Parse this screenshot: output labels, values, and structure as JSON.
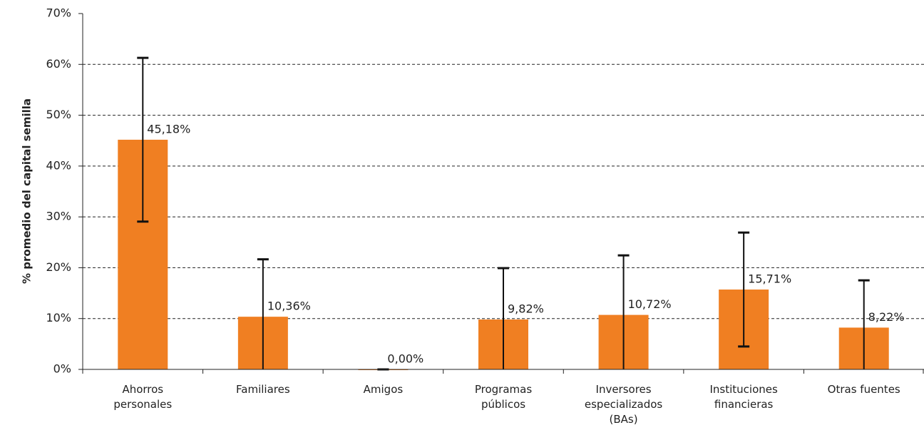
{
  "chart_data": {
    "type": "bar",
    "y_axis_label": "% promedio del capital semilla",
    "categories": [
      "Ahorros personales",
      "Familiares",
      "Amigos",
      "Programas públicos",
      "Inversores especializados (BAs)",
      "Instituciones financieras",
      "Otras fuentes"
    ],
    "values": [
      45.18,
      10.36,
      0,
      9.82,
      10.72,
      15.71,
      8.22
    ],
    "value_labels": [
      "45,18%",
      "10,36%",
      "0,00%",
      "9,82%",
      "10,72%",
      "15,71%",
      "8,22%"
    ],
    "errors": [
      16.1,
      11.3,
      0,
      10.1,
      11.7,
      11.2,
      9.3
    ],
    "color": "#f07f22",
    "ylim": [
      0,
      70
    ],
    "yticks": [
      {
        "value": 0,
        "label": "0%"
      },
      {
        "value": 10,
        "label": "10%"
      },
      {
        "value": 20,
        "label": "20%"
      },
      {
        "value": 30,
        "label": "30%"
      },
      {
        "value": 40,
        "label": "40%"
      },
      {
        "value": 50,
        "label": "50%"
      },
      {
        "value": 60,
        "label": "60%"
      },
      {
        "value": 70,
        "label": "70%"
      }
    ],
    "grid": true
  }
}
